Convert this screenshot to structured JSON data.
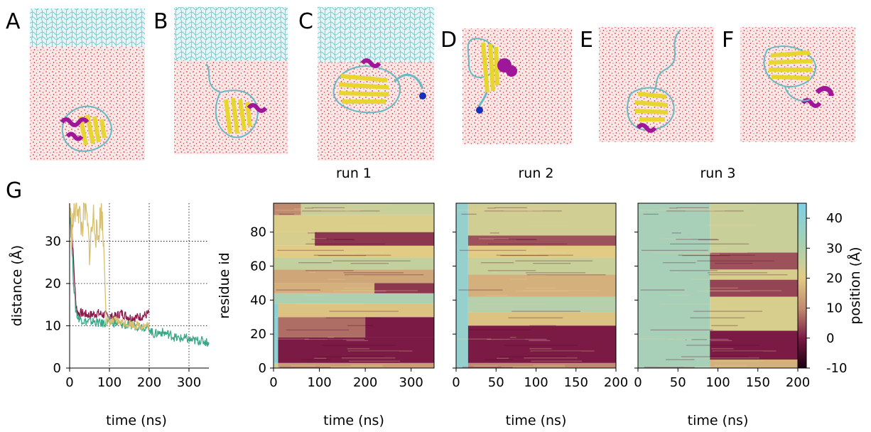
{
  "panel_labels": [
    "A",
    "B",
    "C",
    "D",
    "E",
    "F",
    "G"
  ],
  "colors": {
    "water": "#e0403f",
    "lipid": "#5cc4cc",
    "helix": "#a0169a",
    "sheet": "#e8d630",
    "coil": "#6bb8c0",
    "blue": "#1530b8",
    "heat_low": "#1a0010",
    "heat_mid": "#7a1a45",
    "heat_tan": "#e2cc85",
    "heat_high": "#7fd0e6"
  },
  "chart_data": [
    {
      "type": "line",
      "panel": "G",
      "xlabel": "time (ns)",
      "ylabel": "distance (Å)",
      "xlim": [
        0,
        350
      ],
      "ylim": [
        0,
        39
      ],
      "xticks": [
        "0",
        "100",
        "200",
        "300"
      ],
      "yticks": [
        "0",
        "10",
        "20",
        "30"
      ],
      "grid": true,
      "series": [
        {
          "color": "#8b1a4a",
          "x": [
            0,
            5,
            10,
            15,
            20,
            30,
            50,
            70,
            90,
            110,
            130,
            150,
            170,
            190,
            200
          ],
          "y": [
            36,
            34,
            25,
            16,
            13,
            13,
            12.5,
            13,
            12.5,
            12,
            13,
            12,
            12,
            12.5,
            13
          ]
        },
        {
          "color": "#3aa888",
          "x": [
            0,
            5,
            10,
            15,
            20,
            40,
            60,
            80,
            100,
            120,
            150,
            180,
            200,
            210,
            230,
            250,
            270,
            290,
            310,
            330,
            350
          ],
          "y": [
            38,
            30,
            20,
            14,
            12,
            11,
            11,
            10.5,
            11,
            10.5,
            10,
            10,
            9.5,
            8,
            8.5,
            8,
            7,
            7,
            6.5,
            6.5,
            6
          ]
        },
        {
          "color": "#d8c070",
          "x": [
            0,
            5,
            10,
            20,
            30,
            40,
            50,
            60,
            70,
            80,
            88,
            92,
            100,
            120,
            150,
            180,
            200
          ],
          "y": [
            39,
            32,
            36,
            39,
            33,
            38,
            28,
            36,
            30,
            38,
            25,
            11,
            11,
            11,
            10.5,
            10,
            10
          ]
        }
      ]
    },
    {
      "type": "heatmap",
      "title": "run 1",
      "xlabel": "time (ns)",
      "ylabel": "residue id",
      "xlim": [
        0,
        350
      ],
      "ylim": [
        0,
        97
      ],
      "xticks": [
        "0",
        "100",
        "200",
        "300"
      ],
      "yticks": [
        "0",
        "20",
        "40",
        "60",
        "80"
      ],
      "bands": [
        {
          "y0": 0,
          "y1": 3,
          "t0": 0,
          "t1": 10,
          "v": 22
        },
        {
          "y0": 0,
          "y1": 3,
          "t0": 10,
          "t1": 350,
          "v": 10
        },
        {
          "y0": 3,
          "y1": 18,
          "t0": 0,
          "t1": 10,
          "v": 40
        },
        {
          "y0": 3,
          "y1": 18,
          "t0": 10,
          "t1": 350,
          "v": 0
        },
        {
          "y0": 18,
          "y1": 30,
          "t0": 0,
          "t1": 10,
          "v": 40
        },
        {
          "y0": 18,
          "y1": 30,
          "t0": 10,
          "t1": 200,
          "v": 6
        },
        {
          "y0": 18,
          "y1": 30,
          "t0": 200,
          "t1": 350,
          "v": 0
        },
        {
          "y0": 30,
          "y1": 38,
          "t0": 0,
          "t1": 10,
          "v": 40
        },
        {
          "y0": 30,
          "y1": 38,
          "t0": 10,
          "t1": 350,
          "v": 14
        },
        {
          "y0": 38,
          "y1": 44,
          "t0": 0,
          "t1": 350,
          "v": 30
        },
        {
          "y0": 44,
          "y1": 50,
          "t0": 0,
          "t1": 220,
          "v": 12
        },
        {
          "y0": 44,
          "y1": 50,
          "t0": 220,
          "t1": 350,
          "v": 2
        },
        {
          "y0": 50,
          "y1": 58,
          "t0": 0,
          "t1": 350,
          "v": 11
        },
        {
          "y0": 58,
          "y1": 65,
          "t0": 0,
          "t1": 350,
          "v": 24
        },
        {
          "y0": 65,
          "y1": 72,
          "t0": 0,
          "t1": 350,
          "v": 15
        },
        {
          "y0": 72,
          "y1": 80,
          "t0": 0,
          "t1": 90,
          "v": 18
        },
        {
          "y0": 72,
          "y1": 80,
          "t0": 90,
          "t1": 350,
          "v": 2
        },
        {
          "y0": 80,
          "y1": 90,
          "t0": 0,
          "t1": 350,
          "v": 17
        },
        {
          "y0": 90,
          "y1": 97,
          "t0": 0,
          "t1": 60,
          "v": 8
        },
        {
          "y0": 90,
          "y1": 97,
          "t0": 60,
          "t1": 350,
          "v": 22
        }
      ]
    },
    {
      "type": "heatmap",
      "title": "run 2",
      "xlabel": "time (ns)",
      "xlim": [
        0,
        200
      ],
      "ylim": [
        0,
        97
      ],
      "xticks": [
        "0",
        "50",
        "100",
        "150",
        "200"
      ],
      "bands": [
        {
          "y0": 0,
          "y1": 97,
          "t0": 0,
          "t1": 15,
          "v": 38
        },
        {
          "y0": 0,
          "y1": 3,
          "t0": 15,
          "t1": 200,
          "v": 8
        },
        {
          "y0": 3,
          "y1": 25,
          "t0": 15,
          "t1": 200,
          "v": 0
        },
        {
          "y0": 25,
          "y1": 33,
          "t0": 15,
          "t1": 200,
          "v": 14
        },
        {
          "y0": 33,
          "y1": 42,
          "t0": 15,
          "t1": 200,
          "v": 28
        },
        {
          "y0": 42,
          "y1": 55,
          "t0": 15,
          "t1": 200,
          "v": 12
        },
        {
          "y0": 55,
          "y1": 65,
          "t0": 15,
          "t1": 200,
          "v": 22
        },
        {
          "y0": 65,
          "y1": 72,
          "t0": 15,
          "t1": 200,
          "v": 15
        },
        {
          "y0": 72,
          "y1": 78,
          "t0": 15,
          "t1": 200,
          "v": 4
        },
        {
          "y0": 78,
          "y1": 97,
          "t0": 15,
          "t1": 200,
          "v": 20
        }
      ]
    },
    {
      "type": "heatmap",
      "title": "run 3",
      "xlabel": "time (ns)",
      "xlim": [
        0,
        200
      ],
      "ylim": [
        0,
        97
      ],
      "xticks": [
        "0",
        "50",
        "100",
        "150",
        "200"
      ],
      "bands": [
        {
          "y0": 0,
          "y1": 97,
          "t0": 0,
          "t1": 90,
          "v": 32
        },
        {
          "y0": 0,
          "y1": 5,
          "t0": 90,
          "t1": 200,
          "v": 12
        },
        {
          "y0": 5,
          "y1": 22,
          "t0": 90,
          "t1": 200,
          "v": 0
        },
        {
          "y0": 22,
          "y1": 42,
          "t0": 90,
          "t1": 200,
          "v": 18
        },
        {
          "y0": 42,
          "y1": 52,
          "t0": 90,
          "t1": 200,
          "v": 3
        },
        {
          "y0": 52,
          "y1": 58,
          "t0": 90,
          "t1": 200,
          "v": 18
        },
        {
          "y0": 58,
          "y1": 68,
          "t0": 90,
          "t1": 200,
          "v": 4
        },
        {
          "y0": 68,
          "y1": 97,
          "t0": 90,
          "t1": 200,
          "v": 22
        }
      ]
    },
    {
      "type": "colorbar",
      "label": "position (Å)",
      "range": [
        -10,
        45
      ],
      "ticks": [
        "-10",
        "0",
        "10",
        "20",
        "30",
        "40"
      ]
    }
  ]
}
